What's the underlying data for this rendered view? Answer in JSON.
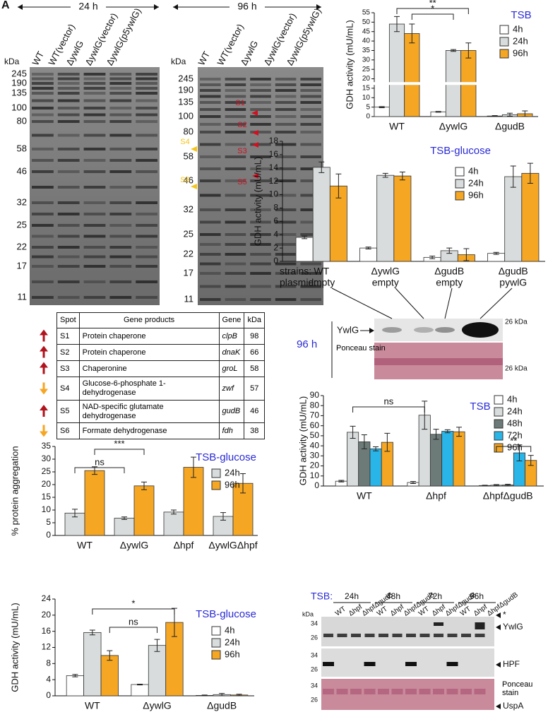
{
  "panel_label": "A",
  "gel_24h": {
    "time": "24 h",
    "kda_label": "kDa",
    "lanes": [
      "WT",
      "WT(vector)",
      "ΔywlG",
      "ΔywlG(vector)",
      "ΔywlG(p5ywlG)"
    ],
    "ladder": [
      245,
      190,
      135,
      100,
      80,
      58,
      46,
      32,
      25,
      22,
      17,
      11
    ]
  },
  "gel_96h": {
    "time": "96 h",
    "kda_label": "kDa",
    "lanes": [
      "WT",
      "WT(vector)",
      "ΔywlG",
      "ΔywlG(vector)",
      "ΔywlG(p5ywlG)"
    ],
    "ladder": [
      245,
      190,
      135,
      100,
      80,
      58,
      46,
      32,
      25,
      22,
      17,
      11
    ]
  },
  "spot_table": {
    "header": [
      "Spot",
      "Gene products",
      "Gene",
      "kDa"
    ],
    "rows": [
      [
        "S1",
        "Protein chaperone",
        "clpB",
        98
      ],
      [
        "S2",
        "Protein chaperone",
        "dnaK",
        66
      ],
      [
        "S3",
        "Chaperonine",
        "groL",
        58
      ],
      [
        "S4",
        "Glucose-6-phosphate 1-dehydrogenase",
        "zwf",
        57
      ],
      [
        "S5",
        "NAD-specific glutamate dehydrogenase",
        "gudB",
        46
      ],
      [
        "S6",
        "Formate dehydrogenase",
        "fdh",
        38
      ]
    ],
    "direction": [
      "up",
      "up",
      "up",
      "down",
      "up",
      "down"
    ]
  },
  "blot_96h": {
    "time": "96 h",
    "band": "YwlG",
    "stain": "Ponceau stain",
    "marker": "26 kDa"
  },
  "blot_tsb": {
    "medium": "TSB:",
    "times": [
      "24h",
      "48h",
      "72h",
      "96h"
    ],
    "strains": [
      "WT",
      "Δhpf",
      "ΔhpfΔgudB"
    ],
    "kda_label": "kDa",
    "panels": [
      {
        "ladder": [
          34,
          26
        ],
        "labels": [
          "*",
          "YwlG"
        ]
      },
      {
        "ladder": [
          34,
          26
        ],
        "labels": [
          "HPF"
        ]
      },
      {
        "ladder": [
          34,
          26
        ],
        "labels": [
          "Ponceau stain",
          "UspA"
        ]
      }
    ]
  },
  "chart_data": [
    {
      "type": "bar",
      "title": "TSB",
      "ylabel": "GDH activity (mU/mL)",
      "categories": [
        "WT",
        "ΔywlG",
        "ΔgudB"
      ],
      "series": [
        {
          "name": "4h",
          "color": "#ffffff",
          "values": [
            5,
            2.5,
            0.3
          ],
          "errors": [
            0.3,
            0.2,
            0.2
          ]
        },
        {
          "name": "24h",
          "color": "#d9dcdc",
          "values": [
            49,
            35,
            1
          ],
          "errors": [
            4,
            0.5,
            0.8
          ]
        },
        {
          "name": "96h",
          "color": "#f5a623",
          "values": [
            44,
            35,
            1.5
          ],
          "errors": [
            5,
            4,
            1.5
          ]
        }
      ],
      "ylim": [
        0,
        55
      ],
      "yticks": [
        0,
        5,
        10,
        15,
        20,
        25,
        30,
        35,
        40,
        45,
        50,
        55
      ],
      "annotations": [
        "**",
        "*"
      ]
    },
    {
      "type": "bar",
      "title": "TSB-glucose",
      "ylabel": "GDH activity (mU/mL)",
      "categories": [
        "WT",
        "ΔywlG",
        "ΔgudB",
        "ΔgudB"
      ],
      "category_title": "strains:",
      "plasmid_title": "plasmid:",
      "plasmids": [
        "empty",
        "empty",
        "empty",
        "pywlG"
      ],
      "series": [
        {
          "name": "4h",
          "color": "#ffffff",
          "values": [
            3.6,
            2.0,
            0.6,
            1.2
          ],
          "errors": [
            0.2,
            0.15,
            0.2,
            0.15
          ]
        },
        {
          "name": "24h",
          "color": "#d9dcdc",
          "values": [
            14.1,
            12.9,
            1.6,
            12.7
          ],
          "errors": [
            0.8,
            0.3,
            0.4,
            1.6
          ]
        },
        {
          "name": "96h",
          "color": "#f5a623",
          "values": [
            11.3,
            12.8,
            1.0,
            13.2
          ],
          "errors": [
            1.8,
            0.6,
            0.9,
            1.5
          ]
        }
      ],
      "ylim": [
        0,
        18
      ],
      "yticks": [
        0,
        2,
        4,
        6,
        8,
        10,
        12,
        14,
        16,
        18
      ],
      "annotations": []
    },
    {
      "type": "bar",
      "title": "TSB",
      "ylabel": "GDH activity (mU/mL)",
      "categories": [
        "WT",
        "Δhpf",
        "ΔhpfΔgudB"
      ],
      "series": [
        {
          "name": "4h",
          "color": "#ffffff",
          "values": [
            4.8,
            3.5,
            0.5
          ],
          "errors": [
            0.8,
            1,
            0.3
          ]
        },
        {
          "name": "24h",
          "color": "#d9dcdc",
          "values": [
            53.5,
            70.5,
            0.8
          ],
          "errors": [
            6,
            14,
            0.6
          ]
        },
        {
          "name": "48h",
          "color": "#6d7b78",
          "values": [
            44,
            51.5,
            1
          ],
          "errors": [
            7,
            5,
            0.8
          ]
        },
        {
          "name": "72h",
          "color": "#29b5e8",
          "values": [
            37,
            54.5,
            33
          ],
          "errors": [
            2,
            1.5,
            8
          ]
        },
        {
          "name": "96h",
          "color": "#f5a623",
          "values": [
            43.5,
            54,
            25.5
          ],
          "errors": [
            9,
            4.5,
            5
          ]
        }
      ],
      "ylim": [
        0,
        90
      ],
      "yticks": [
        0,
        10,
        20,
        30,
        40,
        50,
        60,
        70,
        80,
        90
      ],
      "annotations": [
        "ns",
        "**"
      ]
    },
    {
      "type": "bar",
      "title": "TSB-glucose",
      "ylabel": "% protein aggregation",
      "categories": [
        "WT",
        "ΔywlG",
        "Δhpf",
        "ΔywlGΔhpf"
      ],
      "series": [
        {
          "name": "24h",
          "color": "#d9dcdc",
          "values": [
            8.8,
            6.8,
            9.2,
            7.5
          ],
          "errors": [
            1.5,
            0.5,
            0.8,
            1.5
          ]
        },
        {
          "name": "96h",
          "color": "#f5a623",
          "values": [
            25.5,
            19.5,
            26.8,
            20.5
          ],
          "errors": [
            1.5,
            1.5,
            4,
            3.8
          ]
        }
      ],
      "ylim": [
        0,
        35
      ],
      "yticks": [
        0,
        5,
        10,
        15,
        20,
        25,
        30,
        35
      ],
      "annotations": [
        "ns",
        "***"
      ]
    },
    {
      "type": "bar",
      "title": "TSB-glucose",
      "ylabel": "GDH activity (mU/mL)",
      "categories": [
        "WT",
        "ΔywlG",
        "ΔgudB"
      ],
      "series": [
        {
          "name": "4h",
          "color": "#ffffff",
          "values": [
            5,
            2.8,
            0.1
          ],
          "errors": [
            0.3,
            0.1,
            0.1
          ]
        },
        {
          "name": "24h",
          "color": "#d9dcdc",
          "values": [
            15.7,
            12.5,
            0.3
          ],
          "errors": [
            0.6,
            1.5,
            0.3
          ]
        },
        {
          "name": "96h",
          "color": "#f5a623",
          "values": [
            10,
            18.2,
            0.2
          ],
          "errors": [
            1.2,
            3.5,
            0.2
          ]
        }
      ],
      "ylim": [
        0,
        24
      ],
      "yticks": [
        0,
        4,
        8,
        12,
        16,
        20,
        24
      ],
      "annotations": [
        "ns",
        "*"
      ]
    }
  ]
}
